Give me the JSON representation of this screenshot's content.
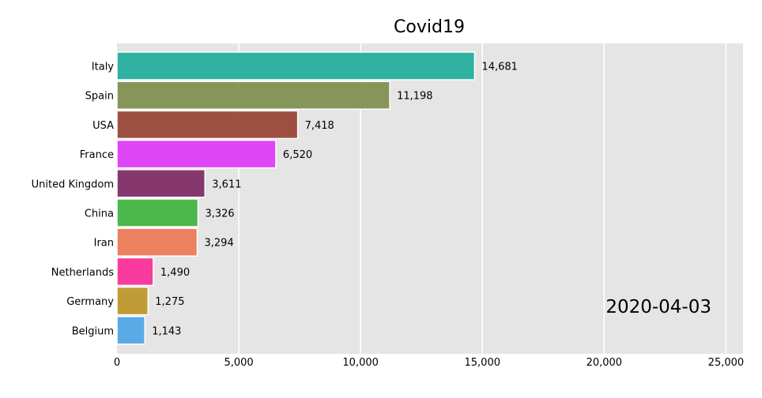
{
  "chart_data": {
    "type": "bar",
    "orientation": "horizontal",
    "title": "Covid19",
    "date": "2020-04-03",
    "categories": [
      "Italy",
      "Spain",
      "USA",
      "France",
      "United Kingdom",
      "China",
      "Iran",
      "Netherlands",
      "Germany",
      "Belgium"
    ],
    "values": [
      14681,
      11198,
      7418,
      6520,
      3611,
      3326,
      3294,
      1490,
      1275,
      1143
    ],
    "value_labels": [
      "14,681",
      "11,198",
      "7,418",
      "6,520",
      "3,611",
      "3,326",
      "3,294",
      "1,490",
      "1,275",
      "1,143"
    ],
    "colors": [
      "#1aab98",
      "#7b8d4b",
      "#953f2f",
      "#dd33f5",
      "#7b2560",
      "#3bb23b",
      "#ec7551",
      "#fb2896",
      "#bc9322",
      "#4aa3e8"
    ],
    "xlim": [
      0,
      25700
    ],
    "xticks": [
      0,
      5000,
      10000,
      15000,
      20000,
      25000
    ],
    "xtick_labels": [
      "0",
      "5,000",
      "10,000",
      "15,000",
      "20,000",
      "25,000"
    ],
    "grid": true,
    "background": "#e5e5e5"
  }
}
